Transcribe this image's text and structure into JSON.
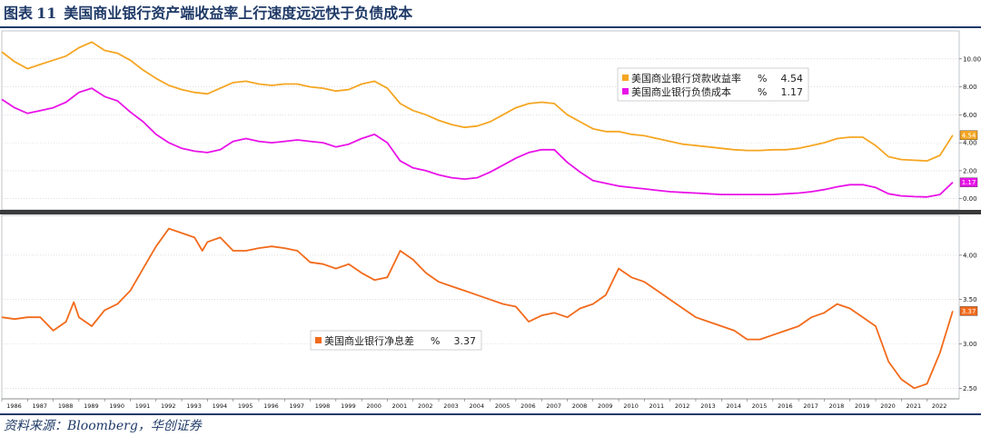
{
  "header": {
    "figure_label": "图表",
    "figure_number": "11",
    "title": "美国商业银行资产端收益率上行速度远远快于负债成本"
  },
  "source": "资料来源：Bloomberg，华创证券",
  "colors": {
    "asset_yield": "#f5a623",
    "liability_cost": "#e812e8",
    "nim": "#f26a1b",
    "frame": "#1f3a68"
  },
  "chart_data": [
    {
      "type": "line",
      "x_start": 1986,
      "x_end": 2023.25,
      "ylim": [
        -0.8,
        12
      ],
      "yticks": [
        "0.00",
        "2.00",
        "4.00",
        "6.00",
        "8.00",
        "10.00"
      ],
      "grid": true,
      "legend_position": "top-right",
      "series": [
        {
          "name": "美国商业银行贷款收益率",
          "legend_suffix": "%",
          "last_value": "4.54",
          "color": "#f5a623",
          "points": [
            [
              1986.0,
              10.5
            ],
            [
              1986.5,
              9.8
            ],
            [
              1987.0,
              9.3
            ],
            [
              1987.5,
              9.6
            ],
            [
              1988.0,
              9.9
            ],
            [
              1988.5,
              10.2
            ],
            [
              1989.0,
              10.8
            ],
            [
              1989.5,
              11.2
            ],
            [
              1990.0,
              10.6
            ],
            [
              1990.5,
              10.4
            ],
            [
              1991.0,
              9.9
            ],
            [
              1991.5,
              9.2
            ],
            [
              1992.0,
              8.6
            ],
            [
              1992.5,
              8.1
            ],
            [
              1993.0,
              7.8
            ],
            [
              1993.5,
              7.6
            ],
            [
              1994.0,
              7.5
            ],
            [
              1994.5,
              7.9
            ],
            [
              1995.0,
              8.3
            ],
            [
              1995.5,
              8.4
            ],
            [
              1996.0,
              8.2
            ],
            [
              1996.5,
              8.1
            ],
            [
              1997.0,
              8.2
            ],
            [
              1997.5,
              8.2
            ],
            [
              1998.0,
              8.0
            ],
            [
              1998.5,
              7.9
            ],
            [
              1999.0,
              7.7
            ],
            [
              1999.5,
              7.8
            ],
            [
              2000.0,
              8.2
            ],
            [
              2000.5,
              8.4
            ],
            [
              2001.0,
              7.9
            ],
            [
              2001.5,
              6.8
            ],
            [
              2002.0,
              6.3
            ],
            [
              2002.5,
              6.0
            ],
            [
              2003.0,
              5.6
            ],
            [
              2003.5,
              5.3
            ],
            [
              2004.0,
              5.1
            ],
            [
              2004.5,
              5.2
            ],
            [
              2005.0,
              5.5
            ],
            [
              2005.5,
              6.0
            ],
            [
              2006.0,
              6.5
            ],
            [
              2006.5,
              6.8
            ],
            [
              2007.0,
              6.9
            ],
            [
              2007.5,
              6.8
            ],
            [
              2008.0,
              6.0
            ],
            [
              2008.5,
              5.5
            ],
            [
              2009.0,
              5.0
            ],
            [
              2009.5,
              4.8
            ],
            [
              2010.0,
              4.8
            ],
            [
              2010.5,
              4.6
            ],
            [
              2011.0,
              4.5
            ],
            [
              2011.5,
              4.3
            ],
            [
              2012.0,
              4.1
            ],
            [
              2012.5,
              3.9
            ],
            [
              2013.0,
              3.8
            ],
            [
              2013.5,
              3.7
            ],
            [
              2014.0,
              3.6
            ],
            [
              2014.5,
              3.5
            ],
            [
              2015.0,
              3.45
            ],
            [
              2015.5,
              3.45
            ],
            [
              2016.0,
              3.5
            ],
            [
              2016.5,
              3.5
            ],
            [
              2017.0,
              3.6
            ],
            [
              2017.5,
              3.8
            ],
            [
              2018.0,
              4.0
            ],
            [
              2018.5,
              4.3
            ],
            [
              2019.0,
              4.4
            ],
            [
              2019.5,
              4.4
            ],
            [
              2020.0,
              3.8
            ],
            [
              2020.5,
              3.0
            ],
            [
              2021.0,
              2.8
            ],
            [
              2021.5,
              2.75
            ],
            [
              2022.0,
              2.7
            ],
            [
              2022.5,
              3.1
            ],
            [
              2023.0,
              4.54
            ]
          ]
        },
        {
          "name": "美国商业银行负债成本",
          "legend_suffix": "%",
          "last_value": "1.17",
          "color": "#e812e8",
          "points": [
            [
              1986.0,
              7.1
            ],
            [
              1986.5,
              6.5
            ],
            [
              1987.0,
              6.1
            ],
            [
              1987.5,
              6.3
            ],
            [
              1988.0,
              6.5
            ],
            [
              1988.5,
              6.9
            ],
            [
              1989.0,
              7.6
            ],
            [
              1989.5,
              7.9
            ],
            [
              1990.0,
              7.3
            ],
            [
              1990.5,
              7.0
            ],
            [
              1991.0,
              6.2
            ],
            [
              1991.5,
              5.5
            ],
            [
              1992.0,
              4.6
            ],
            [
              1992.5,
              4.0
            ],
            [
              1993.0,
              3.6
            ],
            [
              1993.5,
              3.4
            ],
            [
              1994.0,
              3.3
            ],
            [
              1994.5,
              3.5
            ],
            [
              1995.0,
              4.1
            ],
            [
              1995.5,
              4.3
            ],
            [
              1996.0,
              4.1
            ],
            [
              1996.5,
              4.0
            ],
            [
              1997.0,
              4.1
            ],
            [
              1997.5,
              4.2
            ],
            [
              1998.0,
              4.1
            ],
            [
              1998.5,
              4.0
            ],
            [
              1999.0,
              3.7
            ],
            [
              1999.5,
              3.9
            ],
            [
              2000.0,
              4.3
            ],
            [
              2000.5,
              4.6
            ],
            [
              2001.0,
              4.0
            ],
            [
              2001.5,
              2.7
            ],
            [
              2002.0,
              2.2
            ],
            [
              2002.5,
              2.0
            ],
            [
              2003.0,
              1.7
            ],
            [
              2003.5,
              1.5
            ],
            [
              2004.0,
              1.4
            ],
            [
              2004.5,
              1.5
            ],
            [
              2005.0,
              1.9
            ],
            [
              2005.5,
              2.4
            ],
            [
              2006.0,
              2.9
            ],
            [
              2006.5,
              3.3
            ],
            [
              2007.0,
              3.5
            ],
            [
              2007.5,
              3.5
            ],
            [
              2008.0,
              2.6
            ],
            [
              2008.5,
              1.9
            ],
            [
              2009.0,
              1.3
            ],
            [
              2009.5,
              1.1
            ],
            [
              2010.0,
              0.9
            ],
            [
              2010.5,
              0.8
            ],
            [
              2011.0,
              0.7
            ],
            [
              2011.5,
              0.6
            ],
            [
              2012.0,
              0.5
            ],
            [
              2012.5,
              0.45
            ],
            [
              2013.0,
              0.4
            ],
            [
              2013.5,
              0.35
            ],
            [
              2014.0,
              0.3
            ],
            [
              2014.5,
              0.3
            ],
            [
              2015.0,
              0.3
            ],
            [
              2015.5,
              0.3
            ],
            [
              2016.0,
              0.3
            ],
            [
              2016.5,
              0.35
            ],
            [
              2017.0,
              0.4
            ],
            [
              2017.5,
              0.5
            ],
            [
              2018.0,
              0.65
            ],
            [
              2018.5,
              0.85
            ],
            [
              2019.0,
              1.0
            ],
            [
              2019.5,
              1.0
            ],
            [
              2020.0,
              0.8
            ],
            [
              2020.5,
              0.35
            ],
            [
              2021.0,
              0.2
            ],
            [
              2021.5,
              0.15
            ],
            [
              2022.0,
              0.12
            ],
            [
              2022.5,
              0.3
            ],
            [
              2023.0,
              1.17
            ]
          ]
        }
      ]
    },
    {
      "type": "line",
      "x_start": 1986,
      "x_end": 2023.25,
      "ylim": [
        2.38,
        4.45
      ],
      "yticks": [
        "2.50",
        "3.00",
        "3.50",
        "4.00"
      ],
      "grid": true,
      "legend_position": "bottom-left",
      "xticks": [
        "1986",
        "1987",
        "1988",
        "1989",
        "1990",
        "1991",
        "1992",
        "1993",
        "1994",
        "1995",
        "1996",
        "1997",
        "1998",
        "1999",
        "2000",
        "2001",
        "2002",
        "2003",
        "2004",
        "2005",
        "2006",
        "2007",
        "2008",
        "2009",
        "2010",
        "2011",
        "2012",
        "2013",
        "2014",
        "2015",
        "2016",
        "2017",
        "2018",
        "2019",
        "2020",
        "2021",
        "2022"
      ],
      "series": [
        {
          "name": "美国商业银行净息差",
          "legend_suffix": "%",
          "last_value": "3.37",
          "color": "#f26a1b",
          "points": [
            [
              1986.0,
              3.3
            ],
            [
              1986.5,
              3.28
            ],
            [
              1987.0,
              3.3
            ],
            [
              1987.5,
              3.3
            ],
            [
              1988.0,
              3.15
            ],
            [
              1988.5,
              3.25
            ],
            [
              1988.8,
              3.47
            ],
            [
              1989.0,
              3.3
            ],
            [
              1989.5,
              3.2
            ],
            [
              1990.0,
              3.38
            ],
            [
              1990.5,
              3.45
            ],
            [
              1991.0,
              3.6
            ],
            [
              1991.5,
              3.85
            ],
            [
              1992.0,
              4.1
            ],
            [
              1992.5,
              4.3
            ],
            [
              1993.0,
              4.25
            ],
            [
              1993.5,
              4.2
            ],
            [
              1993.8,
              4.05
            ],
            [
              1994.0,
              4.15
            ],
            [
              1994.5,
              4.2
            ],
            [
              1995.0,
              4.05
            ],
            [
              1995.5,
              4.05
            ],
            [
              1996.0,
              4.08
            ],
            [
              1996.5,
              4.1
            ],
            [
              1997.0,
              4.08
            ],
            [
              1997.5,
              4.05
            ],
            [
              1998.0,
              3.92
            ],
            [
              1998.5,
              3.9
            ],
            [
              1999.0,
              3.85
            ],
            [
              1999.5,
              3.9
            ],
            [
              2000.0,
              3.8
            ],
            [
              2000.5,
              3.72
            ],
            [
              2001.0,
              3.75
            ],
            [
              2001.5,
              4.05
            ],
            [
              2002.0,
              3.95
            ],
            [
              2002.5,
              3.8
            ],
            [
              2003.0,
              3.7
            ],
            [
              2003.5,
              3.65
            ],
            [
              2004.0,
              3.6
            ],
            [
              2004.5,
              3.55
            ],
            [
              2005.0,
              3.5
            ],
            [
              2005.5,
              3.45
            ],
            [
              2006.0,
              3.42
            ],
            [
              2006.5,
              3.25
            ],
            [
              2007.0,
              3.32
            ],
            [
              2007.5,
              3.35
            ],
            [
              2008.0,
              3.3
            ],
            [
              2008.5,
              3.4
            ],
            [
              2009.0,
              3.45
            ],
            [
              2009.5,
              3.55
            ],
            [
              2010.0,
              3.85
            ],
            [
              2010.5,
              3.75
            ],
            [
              2011.0,
              3.7
            ],
            [
              2011.5,
              3.6
            ],
            [
              2012.0,
              3.5
            ],
            [
              2012.5,
              3.4
            ],
            [
              2013.0,
              3.3
            ],
            [
              2013.5,
              3.25
            ],
            [
              2014.0,
              3.2
            ],
            [
              2014.5,
              3.15
            ],
            [
              2015.0,
              3.05
            ],
            [
              2015.5,
              3.05
            ],
            [
              2016.0,
              3.1
            ],
            [
              2016.5,
              3.15
            ],
            [
              2017.0,
              3.2
            ],
            [
              2017.5,
              3.3
            ],
            [
              2018.0,
              3.35
            ],
            [
              2018.5,
              3.45
            ],
            [
              2019.0,
              3.4
            ],
            [
              2019.5,
              3.3
            ],
            [
              2020.0,
              3.2
            ],
            [
              2020.5,
              2.8
            ],
            [
              2021.0,
              2.6
            ],
            [
              2021.5,
              2.5
            ],
            [
              2022.0,
              2.55
            ],
            [
              2022.5,
              2.9
            ],
            [
              2023.0,
              3.37
            ]
          ]
        }
      ]
    }
  ]
}
